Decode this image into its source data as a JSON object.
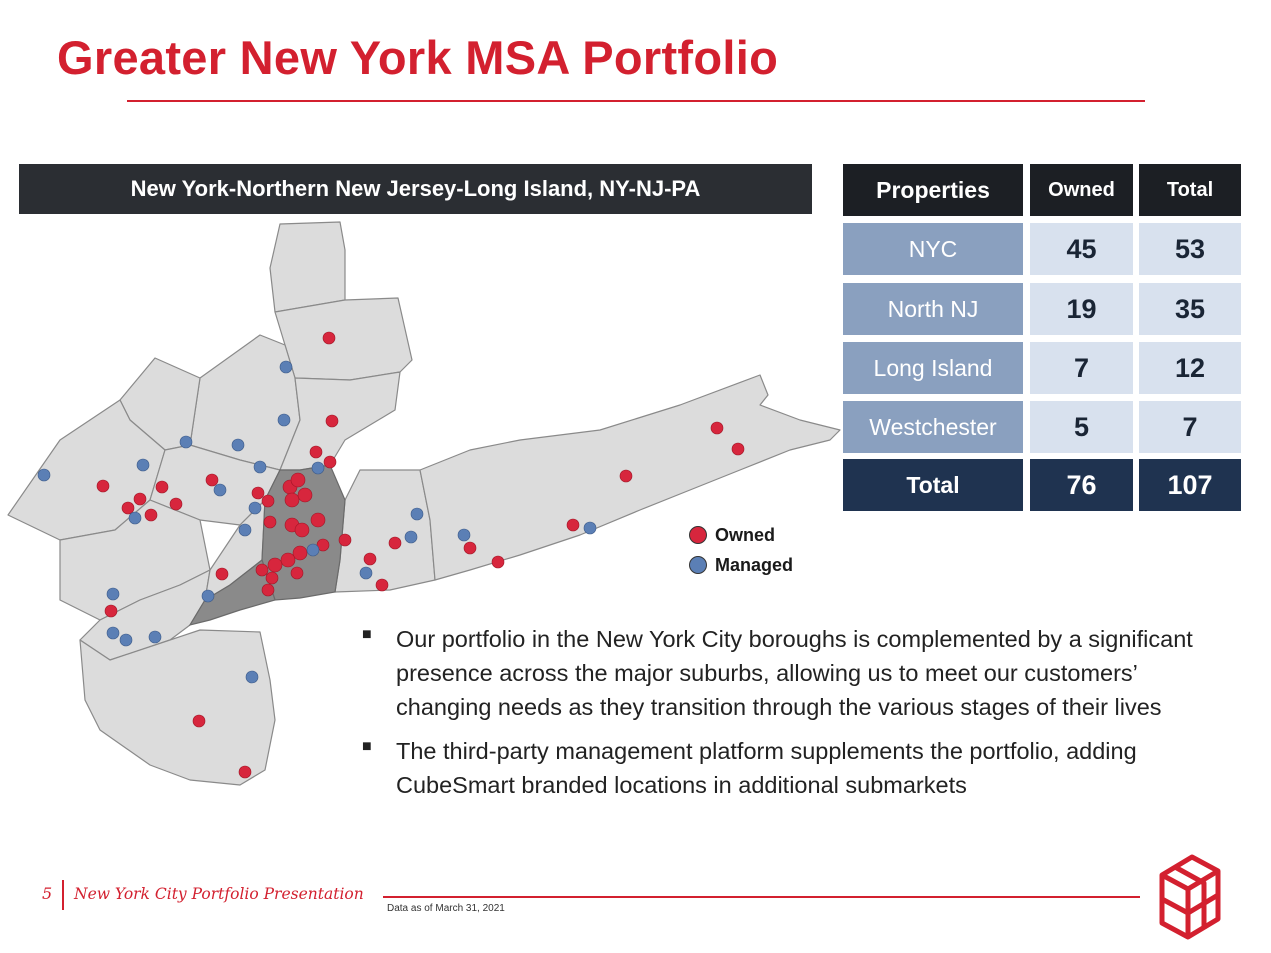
{
  "title": "Greater New York MSA Portfolio",
  "map": {
    "header": "New York-Northern New Jersey-Long Island, NY-NJ-PA"
  },
  "table": {
    "headers": [
      "Properties",
      "Owned",
      "Total"
    ],
    "rows": [
      {
        "label": "NYC",
        "owned": "45",
        "total": "53"
      },
      {
        "label": "North NJ",
        "owned": "19",
        "total": "35"
      },
      {
        "label": "Long Island",
        "owned": "7",
        "total": "12"
      },
      {
        "label": "Westchester",
        "owned": "5",
        "total": "7"
      }
    ],
    "total": {
      "label": "Total",
      "owned": "76",
      "total": "107"
    }
  },
  "legend": [
    {
      "label": "Owned",
      "color": "#d7263d"
    },
    {
      "label": "Managed",
      "color": "#5b7fb5"
    }
  ],
  "bullets": [
    "Our portfolio in the New York City boroughs is complemented by a significant presence across the major suburbs, allowing us to meet our customers’ changing needs as they transition through the various stages of their lives",
    "The third-party management platform supplements the portfolio, adding CubeSmart branded locations in additional submarkets"
  ],
  "footer": {
    "page_number": "5",
    "presentation_title": "New York City Portfolio Presentation",
    "note": "Data as of March 31, 2021"
  },
  "colors": {
    "brand_red": "#d3202f",
    "table_header": "#1c1f24",
    "table_label": "#8aa0bf",
    "table_value": "#d8e1ee",
    "table_total": "#1f3350"
  }
}
